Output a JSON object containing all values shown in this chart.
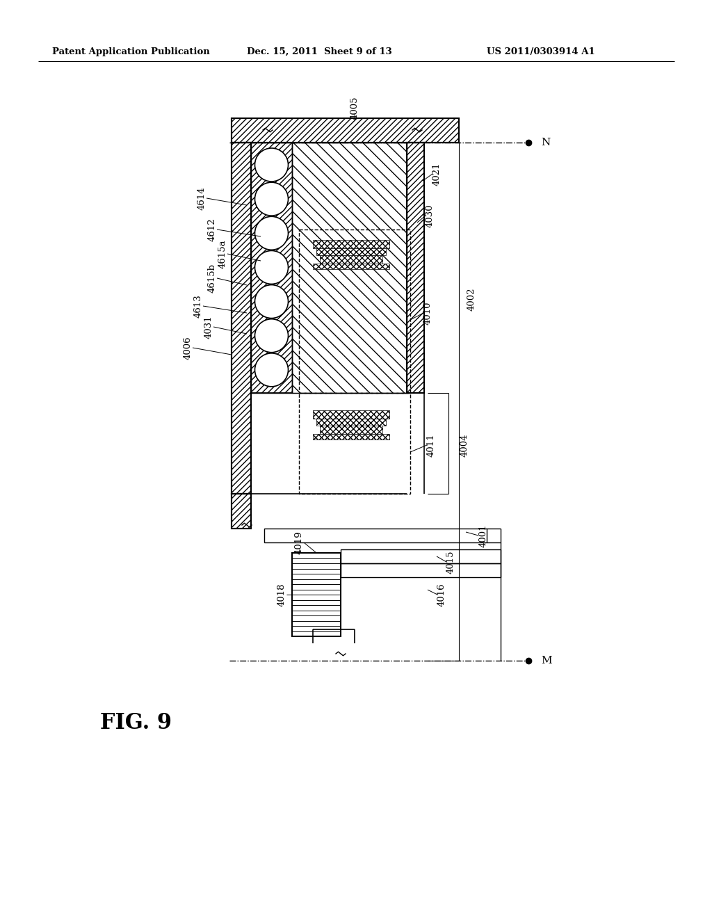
{
  "header_left": "Patent Application Publication",
  "header_center": "Dec. 15, 2011  Sheet 9 of 13",
  "header_right": "US 2011/0303914 A1",
  "title": "FIG. 9",
  "bg": "#ffffff"
}
